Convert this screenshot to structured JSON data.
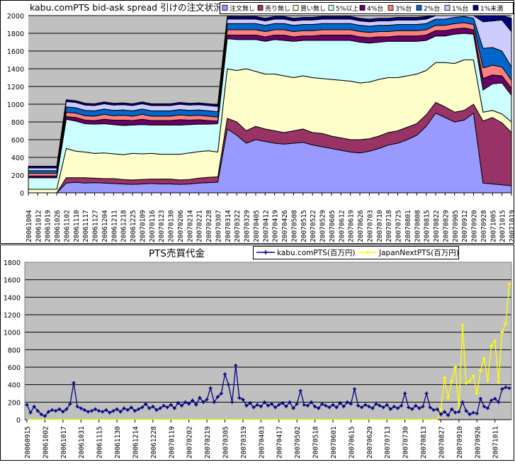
{
  "chart_data": [
    {
      "type": "area",
      "stacked": true,
      "title": "kabu.comPTS bid-ask spread 引けの注文状況",
      "ylim": [
        0,
        2000
      ],
      "yticks": [
        0,
        200,
        400,
        600,
        800,
        1000,
        1200,
        1400,
        1600,
        1800,
        2000
      ],
      "grid": true,
      "legend": "top-right",
      "categories": [
        "20061004",
        "20061012",
        "20061019",
        "20061026",
        "20061102",
        "20061110",
        "20061117",
        "20061127",
        "20061204",
        "20061211",
        "20061218",
        "20061225",
        "20070109",
        "20070116",
        "20070123",
        "20070130",
        "20070206",
        "20070214",
        "20070221",
        "20070228",
        "20070307",
        "20070314",
        "20070322",
        "20070329",
        "20070405",
        "20070412",
        "20070419",
        "20070426",
        "20070508",
        "20070515",
        "20070522",
        "20070529",
        "20070605",
        "20070612",
        "20070619",
        "20070626",
        "20070703",
        "20070710",
        "20070718",
        "20070725",
        "20070801",
        "20070808",
        "20070815",
        "20070822",
        "20070829",
        "20070905",
        "20070912",
        "20070920",
        "20070928",
        "20071005",
        "20071015",
        "20071019"
      ],
      "series": [
        {
          "name": "注文無し",
          "color": "#9999FF",
          "values": [
            0,
            0,
            0,
            0,
            110,
            120,
            110,
            115,
            110,
            105,
            100,
            95,
            100,
            105,
            100,
            100,
            95,
            100,
            110,
            115,
            120,
            720,
            650,
            560,
            600,
            580,
            560,
            550,
            560,
            570,
            540,
            520,
            500,
            480,
            460,
            450,
            470,
            500,
            540,
            560,
            600,
            650,
            750,
            900,
            850,
            800,
            820,
            900,
            110,
            100,
            90,
            80
          ]
        },
        {
          "name": "売り無し",
          "color": "#993366",
          "values": [
            0,
            0,
            0,
            0,
            60,
            50,
            60,
            50,
            50,
            55,
            50,
            50,
            50,
            50,
            55,
            55,
            50,
            50,
            55,
            60,
            60,
            120,
            150,
            140,
            150,
            140,
            140,
            130,
            140,
            150,
            140,
            150,
            140,
            140,
            140,
            150,
            140,
            140,
            140,
            140,
            140,
            130,
            130,
            120,
            120,
            110,
            110,
            100,
            700,
            750,
            700,
            600
          ]
        },
        {
          "name": "買い無し",
          "color": "#FFFFCC",
          "values": [
            40,
            40,
            40,
            40,
            330,
            300,
            290,
            280,
            290,
            280,
            280,
            300,
            290,
            290,
            280,
            280,
            290,
            300,
            300,
            300,
            280,
            560,
            580,
            700,
            620,
            620,
            640,
            640,
            600,
            600,
            620,
            620,
            640,
            650,
            660,
            640,
            640,
            640,
            620,
            600,
            580,
            560,
            500,
            450,
            500,
            550,
            570,
            500,
            100,
            80,
            100,
            120
          ]
        },
        {
          "name": "5%以上",
          "color": "#CCFFFF",
          "values": [
            130,
            130,
            130,
            130,
            330,
            340,
            320,
            330,
            330,
            330,
            330,
            320,
            330,
            320,
            330,
            330,
            330,
            320,
            310,
            300,
            320,
            340,
            350,
            330,
            360,
            370,
            390,
            400,
            410,
            400,
            420,
            430,
            440,
            450,
            460,
            460,
            440,
            420,
            410,
            410,
            390,
            370,
            340,
            300,
            300,
            330,
            300,
            290,
            250,
            300,
            350,
            300
          ]
        },
        {
          "name": "4%台",
          "color": "#660066",
          "values": [
            20,
            20,
            20,
            20,
            30,
            40,
            40,
            40,
            50,
            50,
            60,
            50,
            60,
            50,
            50,
            50,
            60,
            50,
            50,
            40,
            30,
            40,
            50,
            50,
            50,
            50,
            50,
            60,
            50,
            50,
            50,
            60,
            60,
            60,
            60,
            60,
            60,
            60,
            50,
            60,
            60,
            60,
            60,
            60,
            60,
            60,
            60,
            50,
            130,
            100,
            80,
            80
          ]
        },
        {
          "name": "3%台",
          "color": "#FF8080",
          "values": [
            30,
            30,
            30,
            30,
            50,
            50,
            50,
            50,
            55,
            50,
            55,
            50,
            55,
            50,
            50,
            50,
            55,
            50,
            50,
            50,
            45,
            60,
            60,
            60,
            60,
            60,
            60,
            60,
            60,
            60,
            60,
            60,
            60,
            60,
            60,
            60,
            60,
            60,
            60,
            60,
            60,
            60,
            60,
            60,
            60,
            60,
            60,
            60,
            120,
            110,
            100,
            90
          ]
        },
        {
          "name": "2%台",
          "color": "#0066CC",
          "values": [
            30,
            30,
            30,
            30,
            60,
            60,
            60,
            60,
            60,
            60,
            60,
            60,
            60,
            60,
            60,
            60,
            60,
            60,
            60,
            60,
            60,
            70,
            70,
            70,
            70,
            70,
            70,
            70,
            70,
            70,
            70,
            70,
            70,
            70,
            70,
            70,
            70,
            70,
            70,
            70,
            70,
            70,
            70,
            70,
            70,
            70,
            70,
            70,
            220,
            200,
            180,
            150
          ]
        },
        {
          "name": "1%台",
          "color": "#CCCCFF",
          "values": [
            30,
            30,
            30,
            30,
            60,
            60,
            60,
            60,
            60,
            60,
            60,
            60,
            60,
            60,
            60,
            60,
            60,
            60,
            60,
            60,
            60,
            50,
            50,
            50,
            50,
            50,
            50,
            50,
            50,
            50,
            50,
            50,
            50,
            50,
            50,
            50,
            50,
            50,
            50,
            50,
            50,
            50,
            50,
            50,
            50,
            50,
            50,
            50,
            300,
            300,
            350,
            400
          ]
        },
        {
          "name": "1%未満",
          "color": "#000080",
          "values": [
            20,
            20,
            20,
            20,
            20,
            20,
            20,
            20,
            20,
            20,
            20,
            20,
            20,
            20,
            20,
            20,
            20,
            20,
            20,
            20,
            20,
            30,
            30,
            30,
            30,
            30,
            30,
            30,
            30,
            30,
            30,
            30,
            30,
            30,
            30,
            30,
            30,
            30,
            30,
            30,
            30,
            30,
            30,
            30,
            30,
            30,
            30,
            30,
            90,
            100,
            120,
            150
          ]
        }
      ]
    },
    {
      "type": "line",
      "title": "PTS売買代金",
      "ylim": [
        0,
        1800
      ],
      "yticks": [
        0,
        200,
        400,
        600,
        800,
        1000,
        1200,
        1400,
        1600,
        1800
      ],
      "grid": true,
      "legend": "top-right",
      "xtick_labels": [
        "20060915",
        "20061002",
        "20061017",
        "20061031",
        "20061115",
        "20061130",
        "20061214",
        "20061228",
        "20070119",
        "20070202",
        "20070219",
        "20070305",
        "20070319",
        "20070403",
        "20070417",
        "20070502",
        "20070518",
        "20070601",
        "20070615",
        "20070629",
        "20070713",
        "20070730",
        "20070813",
        "20070827",
        "20070910",
        "20070926",
        "20071011"
      ],
      "series": [
        {
          "name": "kabu.comPTS(百万円)",
          "color": "#000080",
          "values": [
            170,
            80,
            150,
            100,
            60,
            40,
            90,
            110,
            100,
            120,
            90,
            120,
            180,
            420,
            150,
            130,
            110,
            90,
            100,
            120,
            100,
            90,
            110,
            80,
            100,
            120,
            90,
            130,
            110,
            140,
            100,
            120,
            140,
            180,
            130,
            150,
            110,
            130,
            160,
            140,
            170,
            130,
            190,
            160,
            200,
            180,
            220,
            170,
            250,
            200,
            230,
            360,
            200,
            260,
            300,
            520,
            400,
            200,
            620,
            250,
            230,
            160,
            190,
            140,
            170,
            150,
            200,
            160,
            180,
            140,
            170,
            190,
            150,
            200,
            130,
            180,
            330,
            170,
            160,
            200,
            150,
            130,
            180,
            160,
            140,
            170,
            140,
            190,
            150,
            200,
            180,
            350,
            160,
            140,
            170,
            150,
            130,
            180,
            160,
            140,
            170,
            120,
            150,
            130,
            160,
            300,
            140,
            120,
            160,
            130,
            150,
            300,
            140,
            110,
            120,
            60,
            90,
            50,
            120,
            80,
            90,
            200,
            100,
            60,
            80,
            70,
            240,
            150,
            130,
            220,
            240,
            200,
            350,
            370,
            360
          ]
        },
        {
          "name": "JapanNextPTS(百万円)",
          "color": "#FFFF00",
          "values": [
            0,
            0,
            0,
            0,
            0,
            0,
            0,
            0,
            0,
            0,
            0,
            0,
            0,
            0,
            0,
            0,
            0,
            0,
            0,
            0,
            0,
            0,
            0,
            0,
            0,
            0,
            0,
            0,
            0,
            0,
            0,
            0,
            0,
            0,
            0,
            0,
            0,
            0,
            0,
            0,
            0,
            0,
            0,
            0,
            0,
            0,
            0,
            0,
            0,
            0,
            0,
            0,
            0,
            0,
            0,
            0,
            0,
            0,
            0,
            0,
            0,
            0,
            0,
            0,
            0,
            0,
            0,
            0,
            0,
            0,
            0,
            0,
            0,
            0,
            0,
            0,
            0,
            0,
            0,
            0,
            0,
            0,
            0,
            0,
            0,
            0,
            0,
            0,
            0,
            0,
            0,
            0,
            0,
            0,
            0,
            0,
            0,
            0,
            0,
            0,
            0,
            0,
            0,
            0,
            0,
            0,
            0,
            0,
            0,
            0,
            0,
            0,
            0,
            0,
            0,
            120,
            480,
            250,
            440,
            600,
            120,
            1080,
            420,
            440,
            500,
            300,
            560,
            700,
            450,
            840,
            900,
            430,
            1000,
            1100,
            1550
          ]
        }
      ]
    }
  ]
}
